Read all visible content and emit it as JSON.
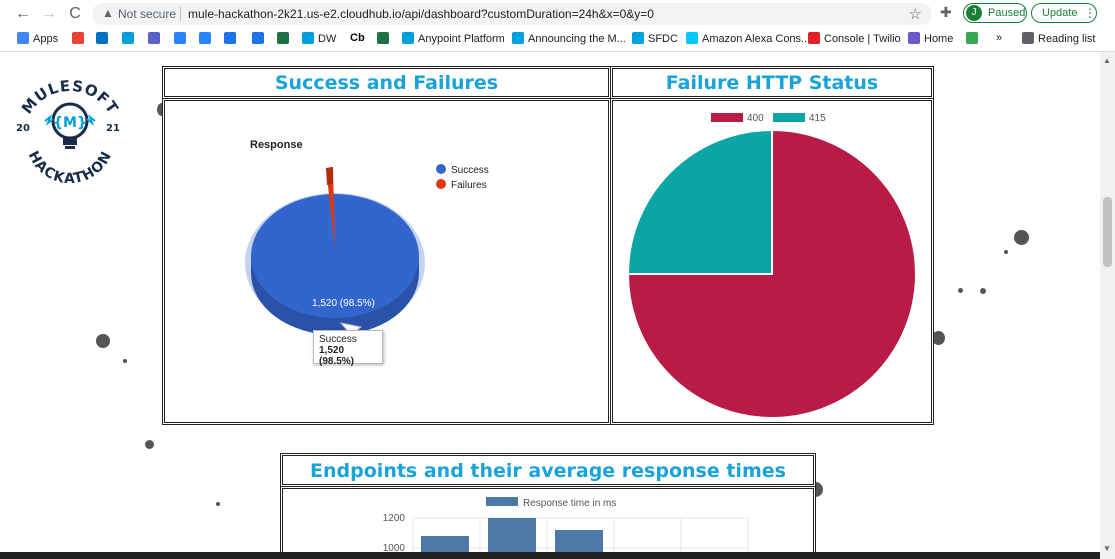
{
  "browser": {
    "nav": {
      "back": "←",
      "forward": "→",
      "reload": "C"
    },
    "security_label": "Not secure",
    "url": "mule-hackathon-2k21.us-e2.cloudhub.io/api/dashboard?customDuration=24h&x=0&y=0",
    "profile_initial": "J",
    "profile_status": "Paused",
    "update_label": "Update"
  },
  "bookmarks": [
    {
      "label": "Apps",
      "icon": "apps-grid-icon",
      "color": "#4285f4"
    },
    {
      "label": "",
      "icon": "gmail-icon",
      "color": "#ea4335"
    },
    {
      "label": "",
      "icon": "outlook-icon",
      "color": "#0072c6"
    },
    {
      "label": "",
      "icon": "mulesoft-icon",
      "color": "#00a0df"
    },
    {
      "label": "",
      "icon": "teams-icon",
      "color": "#5b5fc7"
    },
    {
      "label": "",
      "icon": "jira-icon",
      "color": "#2684ff"
    },
    {
      "label": "",
      "icon": "confluence-icon",
      "color": "#2684ff"
    },
    {
      "label": "",
      "icon": "cloud-icon",
      "color": "#1a73e8"
    },
    {
      "label": "",
      "icon": "tag-icon",
      "color": "#1a73e8"
    },
    {
      "label": "",
      "icon": "excel-icon",
      "color": "#1e7145"
    },
    {
      "label": "DW",
      "icon": "mulesoft-icon",
      "color": "#00a0df"
    },
    {
      "label": "Cb",
      "icon": "",
      "color": "#000000"
    },
    {
      "label": "",
      "icon": "tc-icon",
      "color": "#1e7145"
    },
    {
      "label": "Anypoint Platform",
      "icon": "mulesoft-icon",
      "color": "#00a0df"
    },
    {
      "label": "Announcing the M...",
      "icon": "mulesoft-icon",
      "color": "#00a0df"
    },
    {
      "label": "SFDC",
      "icon": "salesforce-cloud-icon",
      "color": "#00a1e0"
    },
    {
      "label": "Amazon Alexa Cons...",
      "icon": "alexa-ring-icon",
      "color": "#00caff"
    },
    {
      "label": "Console | Twilio",
      "icon": "twilio-icon",
      "color": "#e31e26"
    },
    {
      "label": "Home",
      "icon": "home-swirl-icon",
      "color": "#6a5acd"
    },
    {
      "label": "",
      "icon": "green-box-icon",
      "color": "#34a853"
    },
    {
      "label": "»",
      "icon": "",
      "color": "#202124"
    },
    {
      "label": "Reading list",
      "icon": "reading-list-icon",
      "color": "#5f6368"
    }
  ],
  "logo": {
    "top_text": "MULESOFT",
    "bottom_text": "HACKATHON",
    "year_left": "20",
    "year_right": "21",
    "icon": "lightbulb-mule-icon"
  },
  "panels": {
    "success_failures": {
      "title": "Success and Failures"
    },
    "failure_http": {
      "title": "Failure HTTP Status"
    },
    "endpoints": {
      "title": "Endpoints and their average response times"
    }
  },
  "chart_data": [
    {
      "type": "pie",
      "title": "Response",
      "labels": [
        "Success",
        "Failures"
      ],
      "values": [
        98.5,
        1.5
      ],
      "counts": [
        1520,
        null
      ],
      "colors": [
        "#3366cc",
        "#dc3912"
      ],
      "legend": "right",
      "data_label": "1,520 (98.5%)",
      "tooltip": {
        "label": "Success",
        "value": "1,520 (98.5%)"
      }
    },
    {
      "type": "pie",
      "labels": [
        "400",
        "415"
      ],
      "values": [
        75,
        25
      ],
      "colors": [
        "#b81c46",
        "#0aa6a6"
      ],
      "legend": "top"
    },
    {
      "type": "bar",
      "series": [
        {
          "name": "Response time in ms",
          "values": [
            1080,
            1200,
            1120
          ]
        }
      ],
      "categories": [
        "",
        "",
        ""
      ],
      "y_ticks": [
        "1200",
        "1000"
      ],
      "ylim": [
        1000,
        1200
      ],
      "color": "#4e79a7",
      "legend": "top"
    }
  ]
}
